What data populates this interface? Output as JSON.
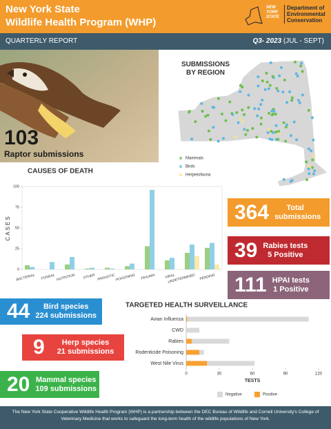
{
  "header": {
    "title_line1": "New York State",
    "title_line2": "Wildlife Health Program (WHP)",
    "logo_text": "NEW YORK STATE",
    "department": "Department of Environmental Conservation"
  },
  "subheader": {
    "report": "QUARTERLY REPORT",
    "period": "Q3- 2023",
    "period_months": "(JUL - SEPT)"
  },
  "raptor": {
    "value": 103,
    "label": "Raptor submissions"
  },
  "map": {
    "title": "SUBMISSIONS BY REGION"
  },
  "stats": [
    {
      "value": 364,
      "label": "Total submissions"
    },
    {
      "value": 39,
      "label": "Rabies tests",
      "detail": "5 Positive"
    },
    {
      "value": 111,
      "label": "HPAI tests",
      "detail": "1 Positive"
    }
  ],
  "species": [
    {
      "value": 44,
      "label": "Bird species",
      "detail": "224 submissions"
    },
    {
      "value": 9,
      "label": "Herp species",
      "detail": "21 submissions"
    },
    {
      "value": 20,
      "label": "Mammal species",
      "detail": "109 submissions"
    }
  ],
  "footer": "The New York State Cooperative Wildlife Health Program (WHP) is a partnership between the DEC Bureau of Wildlife and Cornell University's College of Veterinary Medicine that works to safeguard the long-term health of the wildlife populations of New York.",
  "chart_data": [
    {
      "type": "bar",
      "title": "CAUSES OF DEATH",
      "y_label": "CASES",
      "categories": [
        "BACTERIAL",
        "FUNGAL",
        "NUTRITION",
        "OTHER",
        "PARASITIC",
        "POISONING",
        "TRAUMA",
        "VIRAL",
        "UNDETERMINED",
        "PENDING"
      ],
      "series": [
        {
          "name": "Mammals",
          "color": "#9ccf84",
          "values": [
            5,
            0,
            6,
            1,
            2,
            4,
            28,
            11,
            20,
            26
          ]
        },
        {
          "name": "Birds",
          "color": "#8fd0e6",
          "values": [
            3,
            9,
            15,
            2,
            1,
            7,
            96,
            14,
            30,
            32
          ]
        },
        {
          "name": "Herpetofauna",
          "color": "#fbe9a8",
          "values": [
            0,
            0,
            0,
            0,
            0,
            0,
            0,
            0,
            16,
            6
          ]
        }
      ],
      "ylim": [
        0,
        100
      ],
      "yticks": [
        0,
        25,
        50,
        75,
        100
      ]
    },
    {
      "type": "stacked-barh",
      "title": "TARGETED HEALTH SURVEILLANCE",
      "x_label": "TESTS",
      "categories": [
        "Avian Influenza",
        "CWD",
        "Rabies",
        "Rodenticide Poisoning",
        "West Nile Virus"
      ],
      "series": [
        {
          "name": "Negative",
          "color": "#d9d9d9",
          "values": [
            110,
            12,
            34,
            4,
            43
          ]
        },
        {
          "name": "Positive",
          "color": "#f7a133",
          "values": [
            1,
            0,
            5,
            12,
            19
          ]
        }
      ],
      "xlim": [
        0,
        120
      ],
      "xticks": [
        0,
        30,
        60,
        90,
        120
      ]
    }
  ]
}
